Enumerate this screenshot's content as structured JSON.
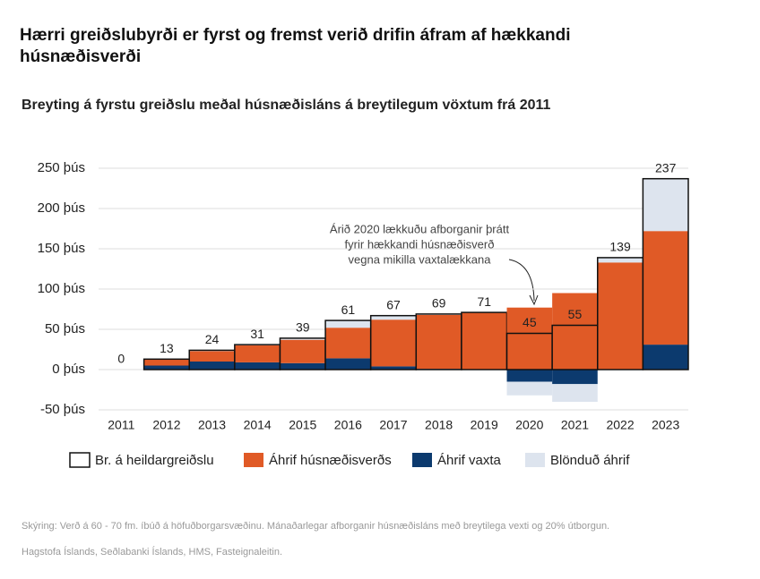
{
  "chart_data": {
    "type": "stacked_bar",
    "title": "Hærri greiðslubyrði er fyrst og fremst verið drifin áfram af hækkandi húsnæðisverði",
    "subtitle": "Breyting á fyrstu greiðslu meðal húsnæðisláns á breytilegum vöxtum frá 2011",
    "categories": [
      "2011",
      "2012",
      "2013",
      "2014",
      "2015",
      "2016",
      "2017",
      "2018",
      "2019",
      "2020",
      "2021",
      "2022",
      "2023"
    ],
    "totals": {
      "name": "Br. á heildargreiðslu",
      "color": "#111111",
      "values": [
        0,
        13,
        24,
        31,
        39,
        61,
        67,
        69,
        71,
        45,
        55,
        139,
        237
      ]
    },
    "series": [
      {
        "name": "Áhrif húsnæðisverðs",
        "color": "#e05a26",
        "values": [
          0,
          8,
          13,
          21,
          29,
          38,
          58,
          67,
          71,
          77,
          95,
          133,
          141
        ]
      },
      {
        "name": "Áhrif vaxta",
        "color": "#0c3a6e",
        "values": [
          0,
          5,
          10,
          9,
          8,
          14,
          4,
          1,
          0,
          -15,
          -18,
          0,
          31
        ]
      },
      {
        "name": "Blönduð áhrif",
        "color": "#dde4ee",
        "values": [
          0,
          0,
          1,
          1,
          2,
          9,
          5,
          1,
          0,
          -17,
          -22,
          6,
          65
        ]
      }
    ],
    "ylim": [
      -50,
      250
    ],
    "yticks": [
      {
        "value": -50,
        "label": "-50 þús"
      },
      {
        "value": 0,
        "label": "0 þús"
      },
      {
        "value": 50,
        "label": "50 þús"
      },
      {
        "value": 100,
        "label": "100 þús"
      },
      {
        "value": 150,
        "label": "150 þús"
      },
      {
        "value": 200,
        "label": "200 þús"
      },
      {
        "value": 250,
        "label": "250 þús"
      }
    ],
    "grid": true,
    "annotation": [
      "Árið 2020 lækkuðu afborganir þrátt",
      "fyrir hækkandi húsnæðisverð",
      "vegna mikilla vaxtalækkana"
    ],
    "note": "Skýring: Verð á 60 - 70 fm. íbúð á höfuðborgarsvæðinu. Mánaðarlegar afborganir húsnæðisláns með breytilega vexti og 20% útborgun.",
    "source": "Hagstofa Íslands, Seðlabanki Íslands, HMS, Fasteignaleitin."
  }
}
